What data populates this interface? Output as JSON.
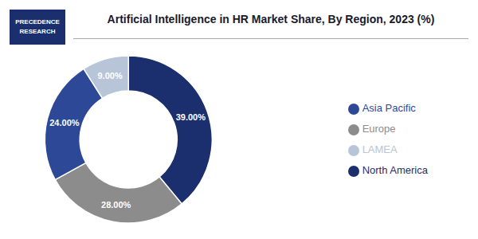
{
  "chart_data": {
    "type": "pie",
    "title": "Artificial Intelligence in HR Market Share, By Region, 2023 (%)",
    "categories": [
      "North America",
      "Europe",
      "Asia Pacific",
      "LAMEA"
    ],
    "values": [
      39.0,
      28.0,
      24.0,
      9.0
    ],
    "value_labels": [
      "39.00%",
      "28.00%",
      "24.00%",
      "9.00%"
    ],
    "colors": [
      "#1b2f6e",
      "#8c8c8c",
      "#2e4898",
      "#b8c4d8"
    ],
    "data_labels": true,
    "legend": "right",
    "annotations": [
      "PRECEDENCE",
      "RESEARCH"
    ]
  }
}
